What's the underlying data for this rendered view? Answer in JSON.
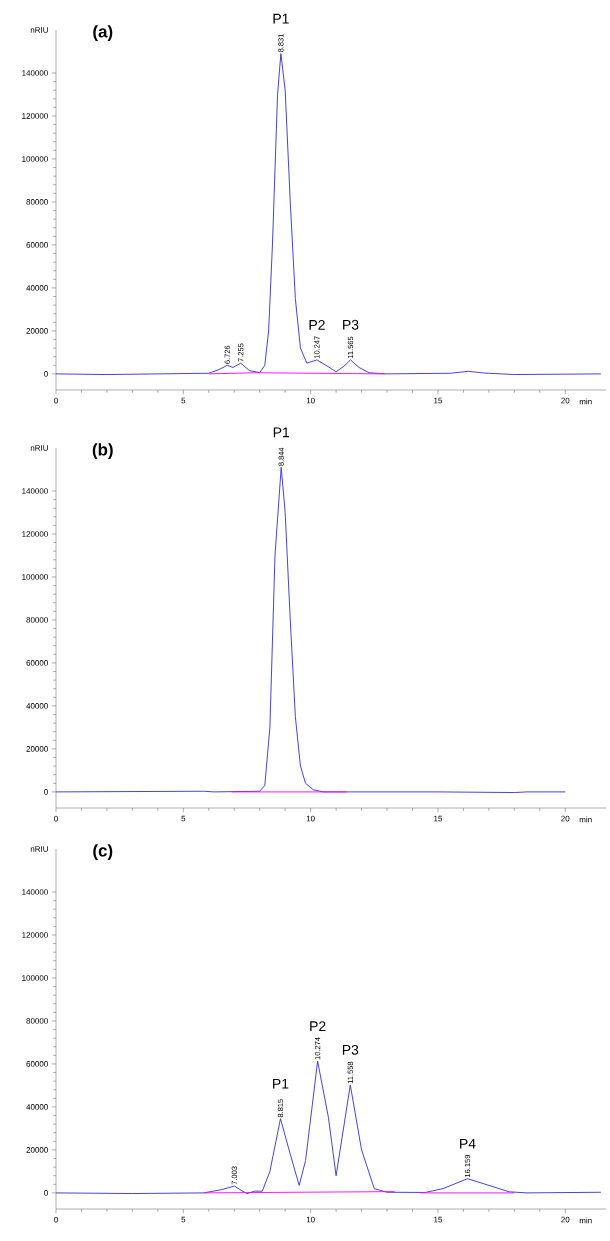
{
  "chart_data": [
    {
      "type": "line",
      "title": "(a)",
      "xlabel": "min",
      "ylabel": "nRIU",
      "xlim": [
        0,
        21.6
      ],
      "xticks": [
        0,
        5,
        10,
        15,
        20
      ],
      "ylim": [
        -7500,
        160000
      ],
      "yticks": [
        0,
        20000,
        40000,
        60000,
        80000,
        100000,
        120000,
        140000
      ],
      "series": [
        {
          "color": "#3030d0",
          "x": [
            0,
            2,
            4,
            6,
            6.4,
            6.726,
            6.95,
            7.255,
            7.6,
            8.0,
            8.2,
            8.35,
            8.5,
            8.7,
            8.831,
            9.0,
            9.2,
            9.4,
            9.6,
            9.85,
            10.247,
            10.6,
            11.0,
            11.3,
            11.565,
            11.9,
            12.3,
            13.0,
            15.5,
            16.2,
            16.8,
            18.0,
            21.4
          ],
          "values": [
            0,
            -300,
            0,
            300,
            2000,
            4000,
            3000,
            5000,
            1500,
            600,
            4000,
            20000,
            60000,
            130000,
            149000,
            132000,
            80000,
            35000,
            12000,
            5000,
            6500,
            4000,
            1000,
            3500,
            6500,
            3000,
            500,
            0,
            300,
            1200,
            400,
            -300,
            0
          ]
        },
        {
          "color": "#ff00ff",
          "x": [
            6.0,
            7.7,
            8.1,
            12.9
          ],
          "values": [
            0,
            500,
            500,
            0
          ]
        }
      ],
      "annotations": [
        {
          "text": "6.726",
          "x": 6.726,
          "y": 4000
        },
        {
          "text": "7.255",
          "x": 7.255,
          "y": 5000
        },
        {
          "text": "8.831",
          "x": 8.831,
          "y": 149000
        },
        {
          "text": "P1",
          "x": 8.831,
          "y": 149000
        },
        {
          "text": "10.247",
          "x": 10.247,
          "y": 6500
        },
        {
          "text": "P2",
          "x": 10.247,
          "y": 6500
        },
        {
          "text": "11.565",
          "x": 11.565,
          "y": 6500
        },
        {
          "text": "P3",
          "x": 11.565,
          "y": 6500
        }
      ]
    },
    {
      "type": "line",
      "title": "(b)",
      "xlabel": "min",
      "ylabel": "nRIU",
      "xlim": [
        0,
        21.6
      ],
      "xticks": [
        0,
        5,
        10,
        15,
        20
      ],
      "ylim": [
        -7500,
        160000
      ],
      "yticks": [
        0,
        20000,
        40000,
        60000,
        80000,
        100000,
        120000,
        140000
      ],
      "series": [
        {
          "color": "#3030d0",
          "x": [
            0,
            5.8,
            6.2,
            8.0,
            8.2,
            8.4,
            8.6,
            8.844,
            9.0,
            9.2,
            9.4,
            9.6,
            9.8,
            10.1,
            10.5,
            15,
            18,
            18.5,
            20
          ],
          "values": [
            0,
            300,
            0,
            300,
            3000,
            30000,
            110000,
            151000,
            130000,
            80000,
            35000,
            12000,
            4000,
            1000,
            0,
            0,
            -300,
            0,
            0
          ]
        },
        {
          "color": "#ff00ff",
          "x": [
            6.9,
            11.4
          ],
          "values": [
            0,
            0
          ]
        }
      ],
      "annotations": [
        {
          "text": "8.844",
          "x": 8.844,
          "y": 151000
        },
        {
          "text": "P1",
          "x": 8.844,
          "y": 151000
        }
      ]
    },
    {
      "type": "line",
      "title": "(c)",
      "xlabel": "min",
      "ylabel": "nRIU",
      "xlim": [
        0,
        21.6
      ],
      "xticks": [
        0,
        5,
        10,
        15,
        20
      ],
      "ylim": [
        -7500,
        160000
      ],
      "yticks": [
        0,
        20000,
        40000,
        60000,
        80000,
        100000,
        120000,
        140000
      ],
      "series": [
        {
          "color": "#3030d0",
          "x": [
            0,
            3,
            5.8,
            6.5,
            6.8,
            7.003,
            7.3,
            7.5,
            7.8,
            8.1,
            8.4,
            8.815,
            9.2,
            9.55,
            9.8,
            10.274,
            10.7,
            11.0,
            11.558,
            12.0,
            12.5,
            13.0,
            14.5,
            15.2,
            16.159,
            17.0,
            17.8,
            18.5,
            21.4
          ],
          "values": [
            0,
            -300,
            0,
            1500,
            2500,
            3200,
            1000,
            -300,
            800,
            800,
            10000,
            34500,
            18000,
            3500,
            15000,
            61300,
            35000,
            8000,
            50200,
            20000,
            2000,
            300,
            200,
            2000,
            6600,
            3500,
            500,
            0,
            300
          ]
        },
        {
          "color": "#ff00ff",
          "x": [
            5.8,
            13.3,
            null,
            14.3,
            18.0
          ],
          "values": [
            0,
            600,
            null,
            0,
            0
          ]
        }
      ],
      "annotations": [
        {
          "text": "7.003",
          "x": 7.003,
          "y": 3200
        },
        {
          "text": "8.815",
          "x": 8.815,
          "y": 34500
        },
        {
          "text": "P1",
          "x": 8.815,
          "y": 34500
        },
        {
          "text": "10.274",
          "x": 10.274,
          "y": 61300
        },
        {
          "text": "P2",
          "x": 10.274,
          "y": 61300
        },
        {
          "text": "11.558",
          "x": 11.558,
          "y": 50200
        },
        {
          "text": "P3",
          "x": 11.558,
          "y": 50200
        },
        {
          "text": "16.159",
          "x": 16.159,
          "y": 6600
        },
        {
          "text": "P4",
          "x": 16.159,
          "y": 6600
        }
      ]
    }
  ]
}
